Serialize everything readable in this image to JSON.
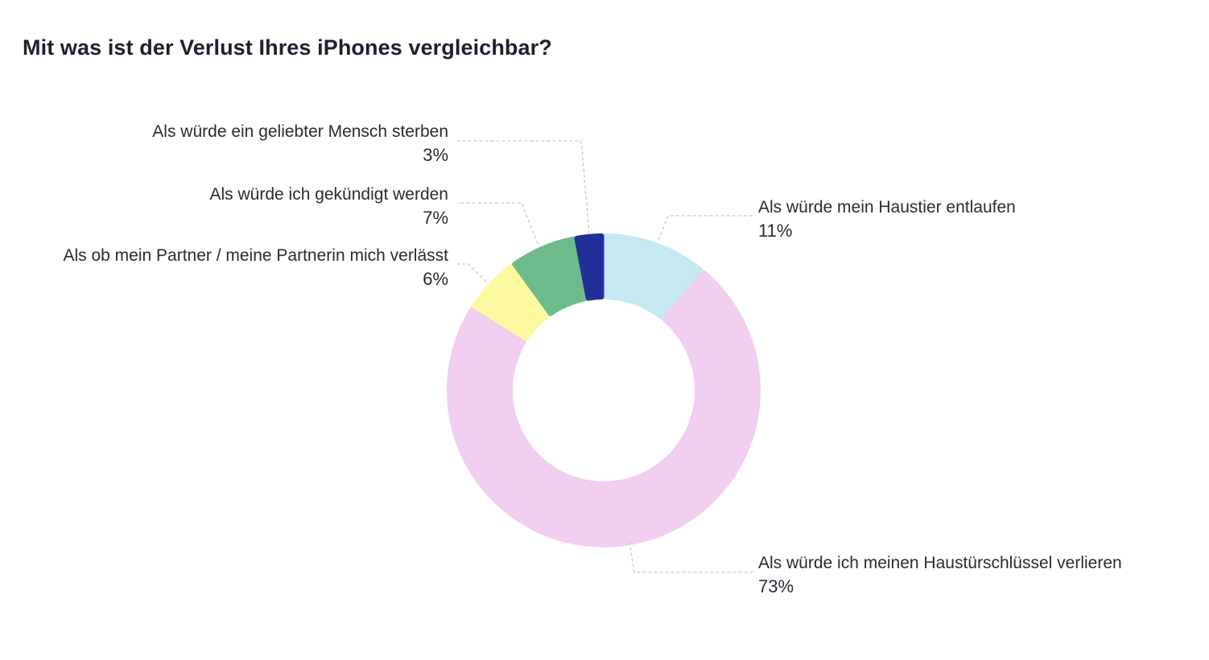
{
  "title": "Mit was ist der Verlust Ihres iPhones vergleichbar?",
  "chart_data": {
    "type": "pie",
    "variant": "donut",
    "title": "Mit was ist der Verlust Ihres iPhones vergleichbar?",
    "slices": [
      {
        "label": "Als würde mein Haustier entlaufen",
        "value": 11,
        "value_label": "11%",
        "color": "#c6e9f2"
      },
      {
        "label": "Als würde ich meinen Haustürschlüssel verlieren",
        "value": 73,
        "value_label": "73%",
        "color": "#f2cef0"
      },
      {
        "label": "Als ob mein Partner / meine Partnerin mich verlässt",
        "value": 6,
        "value_label": "6%",
        "color": "#fdf9a1"
      },
      {
        "label": "Als würde ich gekündigt werden",
        "value": 7,
        "value_label": "7%",
        "color": "#6dbb8a"
      },
      {
        "label": "Als würde ein geliebter Mensch sterben",
        "value": 3,
        "value_label": "3%",
        "color": "#232f98"
      }
    ],
    "start": "top, clockwise",
    "legend": "none (callout labels)"
  }
}
